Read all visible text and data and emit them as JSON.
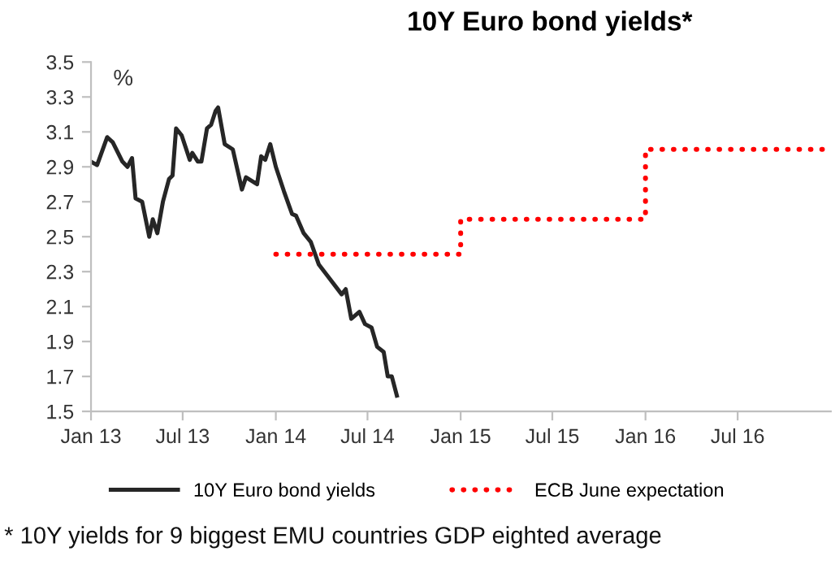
{
  "chart_data": {
    "type": "line",
    "title": "10Y Euro bond yields*",
    "annotations": [
      "%",
      "* 10Y yields for 9 biggest EMU countries GDP eighted average"
    ],
    "series": [
      {
        "name": "10Y Euro bond yields",
        "color": "#262626",
        "line_style": "solid",
        "x": [
          "2013-01-01",
          "2013-01-13",
          "2013-02-02",
          "2013-02-13",
          "2013-03-04",
          "2013-03-14",
          "2013-03-23",
          "2013-03-30",
          "2013-04-12",
          "2013-04-26",
          "2013-05-03",
          "2013-05-12",
          "2013-05-23",
          "2013-06-04",
          "2013-06-11",
          "2013-06-18",
          "2013-06-29",
          "2013-07-15",
          "2013-07-20",
          "2013-07-31",
          "2013-08-07",
          "2013-08-18",
          "2013-08-26",
          "2013-09-04",
          "2013-09-09",
          "2013-09-22",
          "2013-10-08",
          "2013-10-26",
          "2013-11-03",
          "2013-11-25",
          "2013-12-03",
          "2013-12-11",
          "2013-12-21",
          "2014-01-01",
          "2014-01-17",
          "2014-02-02",
          "2014-02-10",
          "2014-02-25",
          "2014-03-11",
          "2014-03-27",
          "2014-04-12",
          "2014-05-11",
          "2014-05-19",
          "2014-05-30",
          "2014-06-15",
          "2014-06-26",
          "2014-07-09",
          "2014-07-20",
          "2014-08-02",
          "2014-08-10",
          "2014-08-18",
          "2014-08-28"
        ],
        "values": [
          2.93,
          2.91,
          3.07,
          3.04,
          2.93,
          2.9,
          2.95,
          2.72,
          2.7,
          2.5,
          2.6,
          2.52,
          2.7,
          2.83,
          2.85,
          3.12,
          3.08,
          2.94,
          2.98,
          2.93,
          2.93,
          3.12,
          3.14,
          3.22,
          3.24,
          3.03,
          3.0,
          2.77,
          2.84,
          2.8,
          2.96,
          2.94,
          3.03,
          2.9,
          2.76,
          2.63,
          2.62,
          2.52,
          2.47,
          2.34,
          2.28,
          2.17,
          2.2,
          2.03,
          2.07,
          2.0,
          1.98,
          1.87,
          1.84,
          1.7,
          1.7,
          1.59
        ]
      },
      {
        "name": "ECB June expectation",
        "color": "#ff0000",
        "type": "step",
        "line_style": "dotted",
        "x": [
          "2014-01-01",
          "2015-01-01",
          "2016-01-01",
          "2017-01-01"
        ],
        "values": [
          2.4,
          2.6,
          3.0,
          3.0
        ]
      }
    ],
    "xlim": [
      "2013-01-01",
      "2017-01-01"
    ],
    "xticks": [
      {
        "value": "2013-01-01",
        "label": "Jan 13"
      },
      {
        "value": "2013-07-01",
        "label": "Jul 13"
      },
      {
        "value": "2014-01-01",
        "label": "Jan 14"
      },
      {
        "value": "2014-07-01",
        "label": "Jul 14"
      },
      {
        "value": "2015-01-01",
        "label": "Jan 15"
      },
      {
        "value": "2015-07-01",
        "label": "Jul 15"
      },
      {
        "value": "2016-01-01",
        "label": "Jan 16"
      },
      {
        "value": "2016-07-01",
        "label": "Jul 16"
      }
    ],
    "ylim": [
      1.5,
      3.5
    ],
    "yticks": [
      {
        "value": 1.5,
        "label": "1.5"
      },
      {
        "value": 1.7,
        "label": "1.7"
      },
      {
        "value": 1.9,
        "label": "1.9"
      },
      {
        "value": 2.1,
        "label": "2.1"
      },
      {
        "value": 2.3,
        "label": "2.3"
      },
      {
        "value": 2.5,
        "label": "2.5"
      },
      {
        "value": 2.7,
        "label": "2.7"
      },
      {
        "value": 2.9,
        "label": "2.9"
      },
      {
        "value": 3.1,
        "label": "3.1"
      },
      {
        "value": 3.3,
        "label": "3.3"
      },
      {
        "value": 3.5,
        "label": "3.5"
      }
    ],
    "grid": false,
    "legend": "bottom"
  }
}
